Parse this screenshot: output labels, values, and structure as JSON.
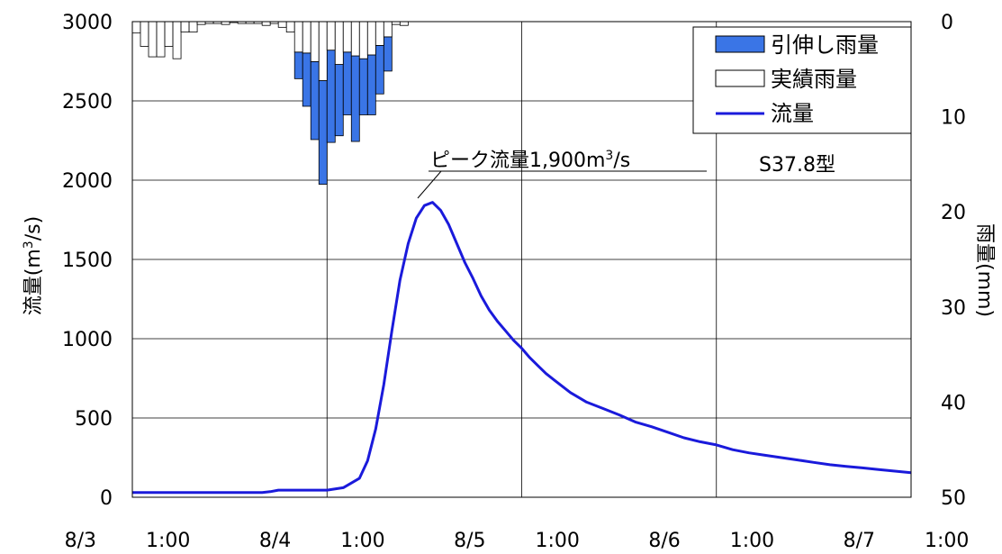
{
  "chart_data": {
    "type": "bar+line",
    "title": "",
    "ylabel_left_main": "流量",
    "ylabel_left_unit": "(m",
    "ylabel_left_sup": "3",
    "ylabel_left_tail": "/s)",
    "ylabel_right_main": "雨量",
    "ylabel_right_unit": "(mm)",
    "ylim_left": [
      0,
      3000
    ],
    "yticks_left": [
      "0",
      "500",
      "1000",
      "1500",
      "2000",
      "2500",
      "3000"
    ],
    "ylim_right_inverted": [
      0,
      50
    ],
    "yticks_right": [
      "0",
      "10",
      "20",
      "30",
      "40",
      "50"
    ],
    "xlim_hours": [
      0,
      96
    ],
    "xticks": [
      {
        "date": "8/3",
        "time": "1:00"
      },
      {
        "date": "8/4",
        "time": "1:00"
      },
      {
        "date": "8/5",
        "time": "1:00"
      },
      {
        "date": "8/6",
        "time": "1:00"
      },
      {
        "date": "8/7",
        "time": "1:00"
      }
    ],
    "grid": true,
    "legend": {
      "placement": "top-right",
      "entries": [
        {
          "label": "引伸し雨量",
          "kind": "bar",
          "color": "#3a75e6"
        },
        {
          "label": "実績雨量",
          "kind": "bar",
          "color": "#ffffff"
        },
        {
          "label": "流量",
          "kind": "line",
          "color": "#1a1adb"
        }
      ]
    },
    "annotations": {
      "peak_label_main": "ピーク流量1,900m",
      "peak_label_sup": "3",
      "peak_label_tail": "/s",
      "pattern_label": "S37.8型"
    },
    "rain_series": {
      "start_hour": 0,
      "step_hours": 1,
      "actual_mm": [
        1.2,
        2.6,
        3.7,
        3.7,
        2.6,
        3.9,
        1.1,
        1.1,
        0.3,
        0.2,
        0.2,
        0.3,
        0.1,
        0.2,
        0.2,
        0.2,
        0.4,
        0.2,
        0.6,
        1.1,
        3.2,
        3.3,
        4.2,
        6.2,
        3.0,
        4.5,
        3.2,
        3.6,
        3.9,
        3.5,
        2.5,
        1.6,
        0.3,
        0.4
      ],
      "stretched_extra_mm": [
        0,
        0,
        0,
        0,
        0,
        0,
        0,
        0,
        0,
        0,
        0,
        0,
        0,
        0,
        0,
        0,
        0,
        0,
        0,
        0,
        2.8,
        5.6,
        8.2,
        10.9,
        9.7,
        7.5,
        6.6,
        9.0,
        5.9,
        6.3,
        5.1,
        3.6,
        0,
        0
      ]
    },
    "flow_series": {
      "x_hours": [
        0,
        2,
        4,
        6,
        8,
        10,
        12,
        14,
        16,
        17,
        18,
        19,
        20,
        22,
        24,
        26,
        28,
        29,
        30,
        31,
        32,
        33,
        34,
        35,
        36,
        37,
        38,
        39,
        40,
        41,
        42,
        43,
        44,
        45,
        46,
        47,
        48,
        49,
        50,
        51,
        52,
        54,
        56,
        58,
        60,
        62,
        64,
        66,
        68,
        70,
        72,
        74,
        76,
        78,
        80,
        82,
        84,
        86,
        88,
        90,
        92,
        94,
        96
      ],
      "y_m3s": [
        30,
        30,
        30,
        30,
        30,
        30,
        30,
        30,
        30,
        35,
        45,
        45,
        45,
        45,
        45,
        60,
        120,
        230,
        430,
        710,
        1050,
        1370,
        1600,
        1760,
        1840,
        1860,
        1810,
        1720,
        1600,
        1480,
        1380,
        1270,
        1180,
        1110,
        1050,
        990,
        940,
        880,
        830,
        780,
        740,
        660,
        600,
        560,
        520,
        475,
        445,
        410,
        375,
        350,
        330,
        300,
        280,
        265,
        250,
        235,
        220,
        205,
        195,
        185,
        175,
        165,
        155
      ]
    }
  }
}
